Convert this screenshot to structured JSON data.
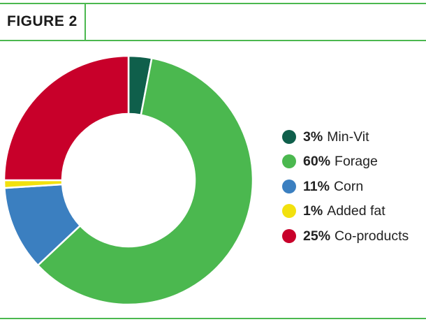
{
  "figure": {
    "label": "FIGURE 2",
    "rule_color": "#4bb84f"
  },
  "chart_data": {
    "type": "pie",
    "style": "donut",
    "title": "",
    "start_angle_deg": 0,
    "direction": "clockwise",
    "legend_placement": "right",
    "slices": [
      {
        "label": "Min-Vit",
        "pct_label": "3%",
        "value": 3,
        "color": "#0f5f4b"
      },
      {
        "label": "Forage",
        "pct_label": "60%",
        "value": 60,
        "color": "#4bb84f"
      },
      {
        "label": "Corn",
        "pct_label": "11%",
        "value": 11,
        "color": "#3b7fc0"
      },
      {
        "label": "Added fat",
        "pct_label": "1%",
        "value": 1,
        "color": "#f2e10e"
      },
      {
        "label": "Co-products",
        "pct_label": "25%",
        "value": 25,
        "color": "#c8002a"
      }
    ]
  }
}
